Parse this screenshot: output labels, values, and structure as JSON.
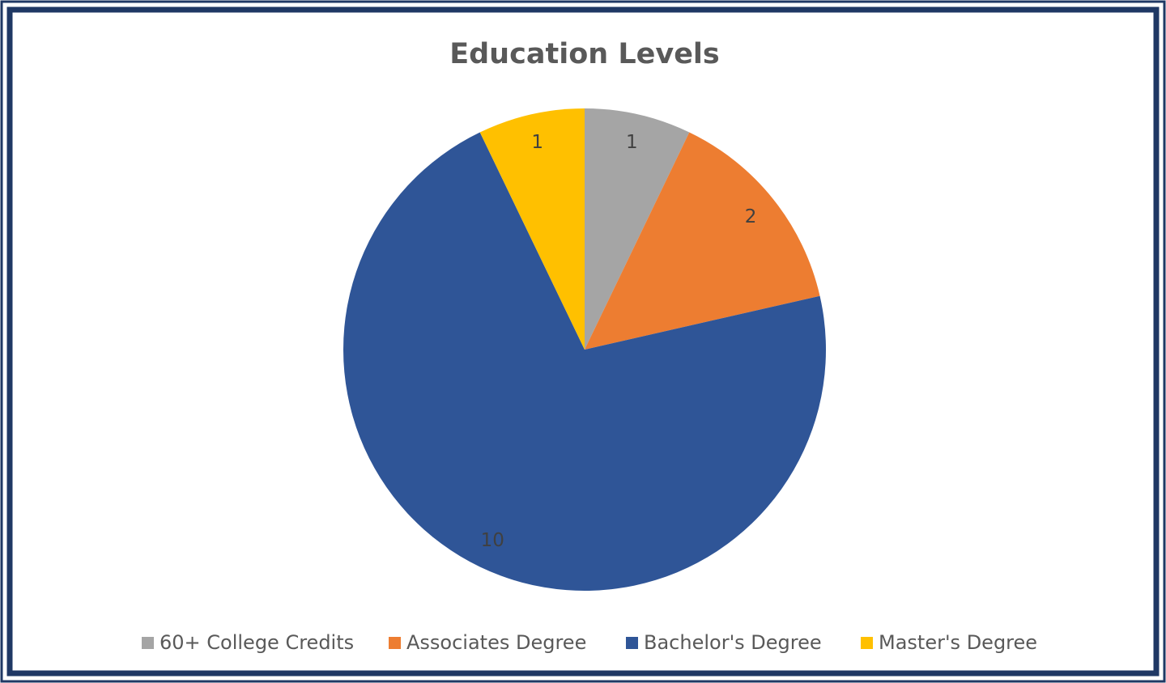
{
  "chart_data": {
    "type": "pie",
    "title": "Education Levels",
    "categories": [
      "60+ College Credits",
      "Associates Degree",
      "Bachelor's Degree",
      "Master's Degree"
    ],
    "values": [
      1,
      2,
      10,
      1
    ],
    "colors": [
      "#a5a5a5",
      "#ed7d31",
      "#2f5597",
      "#ffc000"
    ],
    "legend": "bottom"
  }
}
